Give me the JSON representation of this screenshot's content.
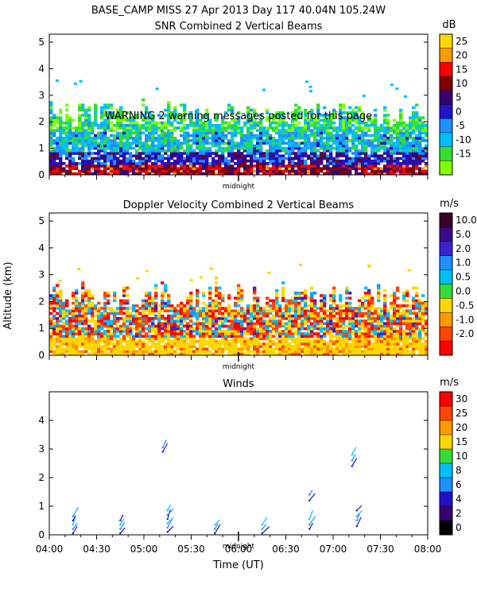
{
  "header": "BASE_CAMP MISS  27 Apr 2013 Day 117 40.04N 105.24W",
  "warning": "WARNING  2 warning messages posted for this page",
  "y_axis_label": "Altitude (km)",
  "x_axis_label": "Time (UT)",
  "midnight_label": "midnight",
  "chart_data": [
    {
      "type": "heatmap",
      "title": "SNR Combined 2 Vertical Beams",
      "ylim": [
        0,
        5.3
      ],
      "yticks": [
        "0",
        "1",
        "2",
        "3",
        "4",
        "5"
      ],
      "xlim": [
        "04:00",
        "08:00"
      ],
      "colorbar_unit": "dB",
      "colorbar_ticks": [
        "25",
        "20",
        "15",
        "10",
        "5",
        "0",
        "-5",
        "-10",
        "-15"
      ],
      "colorbar_colors": [
        "#ffd700",
        "#ff9900",
        "#ff0000",
        "#800000",
        "#3a0072",
        "#2211cc",
        "#1e90ff",
        "#00bfff",
        "#33dd33",
        "#7fff00"
      ],
      "data_top_km": 2.7
    },
    {
      "type": "heatmap",
      "title": "Doppler Velocity Combined 2 Vertical Beams",
      "ylim": [
        0,
        5.3
      ],
      "yticks": [
        "0",
        "1",
        "2",
        "3",
        "4",
        "5"
      ],
      "xlim": [
        "04:00",
        "08:00"
      ],
      "colorbar_unit": "m/s",
      "colorbar_ticks": [
        "10.0",
        "5.0",
        "2.0",
        "1.0",
        "0.5",
        "0.0",
        "-0.5",
        "-1.0",
        "-2.0"
      ],
      "colorbar_colors": [
        "#3a0028",
        "#3b0a8a",
        "#3a22cc",
        "#1e90ff",
        "#00bfff",
        "#33dd33",
        "#ffd700",
        "#ff9900",
        "#ff4500",
        "#ff0000"
      ],
      "data_top_km": 2.6
    },
    {
      "type": "scatter",
      "title": "Winds",
      "ylim": [
        0,
        5
      ],
      "yticks": [
        "0",
        "1",
        "2",
        "3",
        "4"
      ],
      "xlim": [
        "04:00",
        "08:00"
      ],
      "xticks": [
        "04:00",
        "04:30",
        "05:00",
        "05:30",
        "06:00",
        "06:30",
        "07:00",
        "07:30",
        "08:00"
      ],
      "colorbar_unit": "m/s",
      "colorbar_ticks": [
        "30",
        "25",
        "20",
        "15",
        "10",
        "8",
        "6",
        "4",
        "2",
        "0"
      ],
      "colorbar_colors": [
        "#ff0000",
        "#ff4500",
        "#ff9900",
        "#ffd700",
        "#33dd33",
        "#00bfff",
        "#1e90ff",
        "#2211cc",
        "#3a0072",
        "#000000"
      ],
      "profiles": [
        {
          "time_h": 0.25,
          "heights_km": [
            0.05,
            0.2,
            0.35,
            0.5,
            0.65
          ]
        },
        {
          "time_h": 0.75,
          "heights_km": [
            0.05,
            0.2,
            0.35,
            0.5
          ]
        },
        {
          "time_h": 1.25,
          "heights_km": [
            0.1,
            0.25,
            0.4,
            0.55,
            0.7,
            0.85
          ]
        },
        {
          "time_h": 1.75,
          "heights_km": [
            0.05,
            0.2,
            0.35
          ]
        },
        {
          "time_h": 2.25,
          "heights_km": [
            0.05,
            0.2,
            0.35
          ]
        },
        {
          "time_h": 2.75,
          "heights_km": [
            0.2,
            0.35,
            0.55,
            1.2,
            1.4
          ]
        },
        {
          "time_h": 3.25,
          "heights_km": [
            0.3,
            0.5,
            0.65,
            0.85
          ]
        },
        {
          "time_h": 1.2,
          "heights_km": [
            2.9,
            3.05
          ]
        },
        {
          "time_h": 3.2,
          "heights_km": [
            2.4,
            2.6,
            2.8
          ]
        }
      ]
    }
  ]
}
